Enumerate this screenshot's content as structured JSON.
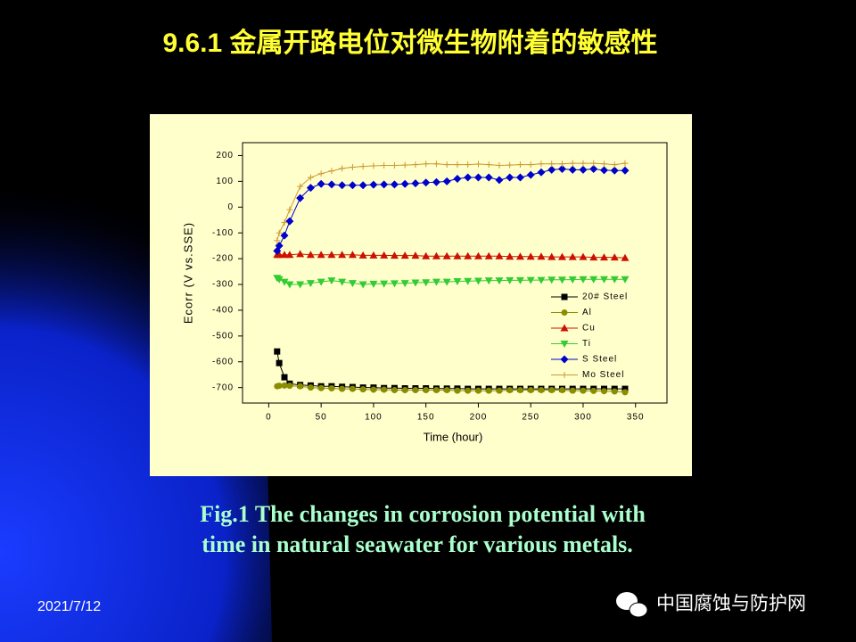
{
  "slide": {
    "title": "9.6.1 金属开路电位对微生物附着的敏感性",
    "caption": [
      "Fig.1 The changes in corrosion potential with",
      "time in natural seawater for various metals."
    ],
    "date": "2021/7/12",
    "watermark": "中国腐蚀与防护网"
  },
  "chart_data": {
    "type": "line",
    "x_label": "Time (hour)",
    "y_label": "Ecorr (V vs.SSE)",
    "x": [
      8,
      10,
      15,
      20,
      30,
      40,
      50,
      60,
      70,
      80,
      90,
      100,
      110,
      120,
      130,
      140,
      150,
      160,
      170,
      180,
      190,
      200,
      210,
      220,
      230,
      240,
      250,
      260,
      270,
      280,
      290,
      300,
      310,
      320,
      330,
      340
    ],
    "xlim": [
      -25,
      380
    ],
    "xticks": [
      0,
      50,
      100,
      150,
      200,
      250,
      300,
      350
    ],
    "ylim": [
      -760,
      250
    ],
    "yticks": [
      -700,
      -600,
      -500,
      -400,
      -300,
      -200,
      -100,
      0,
      100,
      200
    ],
    "series": [
      {
        "name": "20# Steel",
        "color": "#000000",
        "marker": "square",
        "values": [
          -560,
          -605,
          -660,
          -685,
          -690,
          -692,
          -695,
          -695,
          -697,
          -698,
          -700,
          -700,
          -702,
          -702,
          -703,
          -703,
          -703,
          -704,
          -704,
          -704,
          -705,
          -705,
          -705,
          -705,
          -705,
          -705,
          -705,
          -705,
          -705,
          -705,
          -705,
          -705,
          -705,
          -705,
          -705,
          -705
        ]
      },
      {
        "name": "Al",
        "color": "#8c8c00",
        "marker": "circle",
        "values": [
          -695,
          -693,
          -692,
          -693,
          -695,
          -700,
          -702,
          -703,
          -705,
          -705,
          -707,
          -708,
          -708,
          -710,
          -710,
          -710,
          -710,
          -710,
          -710,
          -712,
          -712,
          -712,
          -712,
          -712,
          -710,
          -710,
          -710,
          -710,
          -710,
          -710,
          -712,
          -712,
          -713,
          -714,
          -715,
          -718
        ]
      },
      {
        "name": "Cu",
        "color": "#cc1100",
        "marker": "triangle-up",
        "values": [
          -185,
          -185,
          -185,
          -185,
          -182,
          -185,
          -185,
          -185,
          -185,
          -185,
          -187,
          -187,
          -187,
          -188,
          -188,
          -188,
          -190,
          -190,
          -190,
          -190,
          -190,
          -190,
          -190,
          -190,
          -192,
          -192,
          -192,
          -192,
          -193,
          -193,
          -193,
          -193,
          -195,
          -195,
          -195,
          -197
        ]
      },
      {
        "name": "Ti",
        "color": "#33cc33",
        "marker": "triangle-down",
        "values": [
          -275,
          -280,
          -290,
          -300,
          -300,
          -295,
          -290,
          -285,
          -290,
          -295,
          -300,
          -298,
          -297,
          -296,
          -295,
          -293,
          -292,
          -290,
          -290,
          -288,
          -287,
          -286,
          -285,
          -285,
          -284,
          -284,
          -283,
          -283,
          -282,
          -282,
          -281,
          -280,
          -280,
          -280,
          -280,
          -280
        ]
      },
      {
        "name": "S Steel",
        "color": "#0000cc",
        "marker": "diamond",
        "values": [
          -170,
          -150,
          -110,
          -55,
          35,
          75,
          90,
          88,
          85,
          85,
          85,
          87,
          88,
          88,
          90,
          92,
          95,
          97,
          100,
          110,
          115,
          115,
          115,
          105,
          115,
          115,
          125,
          135,
          145,
          148,
          145,
          145,
          148,
          143,
          142,
          142
        ]
      },
      {
        "name": "Mo Steel",
        "color": "#cc9933",
        "marker": "plus",
        "values": [
          -130,
          -100,
          -60,
          -10,
          80,
          115,
          130,
          140,
          150,
          155,
          158,
          160,
          162,
          162,
          163,
          165,
          168,
          168,
          165,
          165,
          165,
          167,
          165,
          162,
          163,
          165,
          165,
          168,
          168,
          168,
          170,
          170,
          170,
          168,
          165,
          170
        ]
      }
    ]
  }
}
